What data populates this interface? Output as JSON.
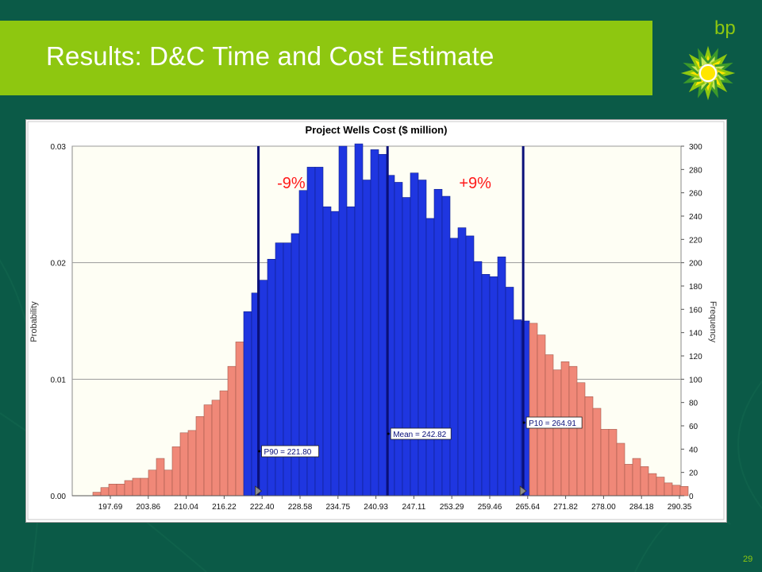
{
  "slide": {
    "title": "Results: D&C Time and Cost Estimate",
    "logo_text": "bp",
    "page_number": "29",
    "colors": {
      "background": "#0b5a47",
      "title_bar": "#8ec710",
      "logo_green": "#8ec710",
      "logo_yellow": "#ffe600"
    }
  },
  "chart_data": {
    "type": "bar",
    "title": "Project Wells Cost ($ million)",
    "ylabel_left": "Probability",
    "ylabel_right": "Frequency",
    "x_ticks": [
      "197.69",
      "203.86",
      "210.04",
      "216.22",
      "222.40",
      "228.58",
      "234.75",
      "240.93",
      "247.11",
      "253.29",
      "259.46",
      "265.64",
      "271.82",
      "278.00",
      "284.18",
      "290.35"
    ],
    "x_range": [
      197.69,
      290.35
    ],
    "ylim_frequency": [
      0,
      300
    ],
    "ylim_probability": [
      0,
      0.03
    ],
    "left_ticks": [
      "0.00",
      "0.01",
      "0.02",
      "0.03"
    ],
    "right_ticks": [
      "0",
      "20",
      "40",
      "60",
      "80",
      "100",
      "120",
      "140",
      "160",
      "180",
      "200",
      "220",
      "240",
      "260",
      "280",
      "300"
    ],
    "bin_count": 75,
    "frequencies": [
      3,
      7,
      10,
      10,
      13,
      15,
      15,
      22,
      32,
      22,
      42,
      54,
      56,
      68,
      78,
      82,
      90,
      111,
      132,
      158,
      174,
      185,
      203,
      217,
      217,
      225,
      262,
      282,
      282,
      248,
      244,
      300,
      248,
      302,
      271,
      297,
      293,
      275,
      269,
      256,
      277,
      271,
      238,
      263,
      257,
      221,
      230,
      223,
      201,
      190,
      188,
      205,
      179,
      151,
      150,
      148,
      138,
      121,
      108,
      115,
      111,
      97,
      85,
      75,
      57,
      57,
      45,
      27,
      32,
      25,
      19,
      16,
      11,
      9,
      8
    ],
    "colors": {
      "tail": "#f08878",
      "center": "#1f36e0",
      "marker_line": "#0a107a",
      "bar_edge": "#5a5a5a",
      "plot_bg": "#fefef4",
      "annot_red": "#ff1a1a"
    },
    "markers": [
      {
        "label": "P90 = 221.80",
        "value": 221.8
      },
      {
        "label": "Mean = 242.82",
        "value": 242.82
      },
      {
        "label": "P10 = 264.91",
        "value": 264.91
      }
    ],
    "annotations": [
      {
        "text": "-9%"
      },
      {
        "text": "+9%"
      }
    ],
    "grid": true
  }
}
